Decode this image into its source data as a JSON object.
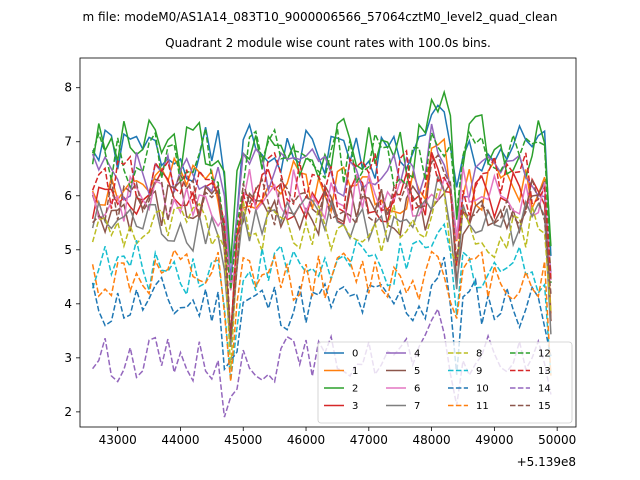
{
  "chart_data": {
    "type": "line",
    "suptitle": "m file: modeM0/AS1A14_083T10_9000006566_57064cztM0_level2_quad_clean",
    "title": "Quadrant 2 module wise count rates with 100.0s bins.",
    "xlabel": "",
    "ylabel": "",
    "x_offset_label": "+5.139e8",
    "xlim": [
      42400,
      50300
    ],
    "ylim": [
      1.72,
      8.55
    ],
    "x_ticks": [
      43000,
      44000,
      45000,
      46000,
      47000,
      48000,
      49000,
      50000
    ],
    "y_ticks": [
      2,
      3,
      4,
      5,
      6,
      7,
      8
    ],
    "x_tick_labels": [
      "43000",
      "44000",
      "45000",
      "46000",
      "47000",
      "48000",
      "49000",
      "50000"
    ],
    "y_tick_labels": [
      "2",
      "3",
      "4",
      "5",
      "6",
      "7",
      "8"
    ],
    "x_start": 42600,
    "x_step": 100,
    "x_end": 49900,
    "grid": false,
    "legend_placement": "lower right",
    "legend_ncol": 4,
    "series": [
      {
        "name": "0",
        "color": "#1f77b4",
        "style": "solid",
        "base": 6.8,
        "amp": 0.3,
        "seed": 1
      },
      {
        "name": "1",
        "color": "#ff7f0e",
        "style": "solid",
        "base": 6.2,
        "amp": 0.3,
        "seed": 2
      },
      {
        "name": "2",
        "color": "#2ca02c",
        "style": "solid",
        "base": 6.9,
        "amp": 0.35,
        "seed": 3
      },
      {
        "name": "3",
        "color": "#d62728",
        "style": "solid",
        "base": 6.0,
        "amp": 0.3,
        "seed": 4
      },
      {
        "name": "4",
        "color": "#9467bd",
        "style": "solid",
        "base": 6.4,
        "amp": 0.3,
        "seed": 5
      },
      {
        "name": "5",
        "color": "#8c564b",
        "style": "solid",
        "base": 5.8,
        "amp": 0.3,
        "seed": 6
      },
      {
        "name": "6",
        "color": "#e377c2",
        "style": "solid",
        "base": 6.0,
        "amp": 0.35,
        "seed": 7
      },
      {
        "name": "7",
        "color": "#7f7f7f",
        "style": "solid",
        "base": 5.5,
        "amp": 0.3,
        "seed": 8
      },
      {
        "name": "8",
        "color": "#bcbd22",
        "style": "dashed",
        "base": 5.4,
        "amp": 0.3,
        "seed": 9
      },
      {
        "name": "9",
        "color": "#17becf",
        "style": "dashed",
        "base": 4.7,
        "amp": 0.3,
        "seed": 10
      },
      {
        "name": "10",
        "color": "#1f77b4",
        "style": "dashed",
        "base": 4.0,
        "amp": 0.3,
        "seed": 11
      },
      {
        "name": "11",
        "color": "#ff7f0e",
        "style": "dashed",
        "base": 4.5,
        "amp": 0.3,
        "seed": 12
      },
      {
        "name": "12",
        "color": "#2ca02c",
        "style": "dashed",
        "base": 6.7,
        "amp": 0.35,
        "seed": 13
      },
      {
        "name": "13",
        "color": "#d62728",
        "style": "dashed",
        "base": 6.2,
        "amp": 0.35,
        "seed": 14
      },
      {
        "name": "14",
        "color": "#9467bd",
        "style": "dashed",
        "base": 3.0,
        "amp": 0.25,
        "seed": 15
      },
      {
        "name": "15",
        "color": "#8c564b",
        "style": "dashed",
        "base": 5.9,
        "amp": 0.3,
        "seed": 16
      }
    ]
  }
}
